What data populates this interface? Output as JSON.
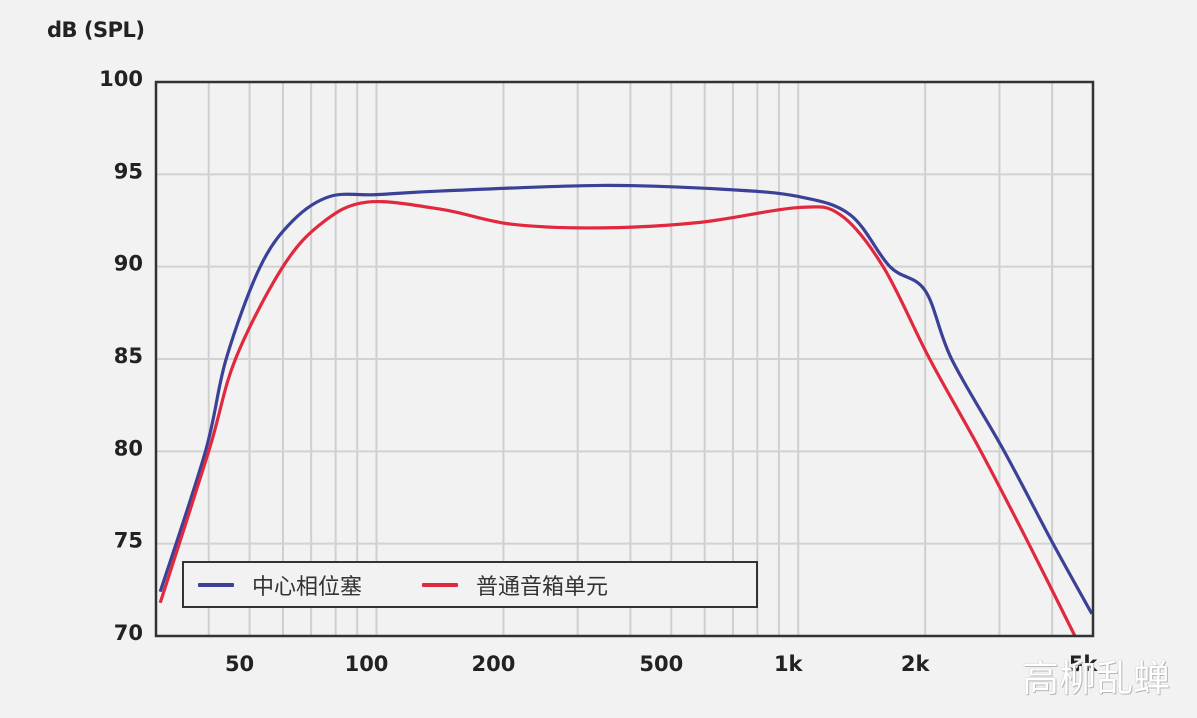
{
  "chart_data": {
    "type": "line",
    "title": "",
    "xlabel": "",
    "ylabel": "dB (SPL)",
    "xscale": "log",
    "xlim": [
      30,
      5000
    ],
    "ylim": [
      70,
      100
    ],
    "grid": true,
    "legend_position": "bottom-left inside",
    "x_tick_labels": [
      {
        "value": 50,
        "label": "50"
      },
      {
        "value": 100,
        "label": "100"
      },
      {
        "value": 200,
        "label": "200"
      },
      {
        "value": 500,
        "label": "500"
      },
      {
        "value": 1000,
        "label": "1k"
      },
      {
        "value": 2000,
        "label": "2k"
      },
      {
        "value": 5000,
        "label": "5k"
      }
    ],
    "x_gridlines": [
      40,
      50,
      60,
      70,
      80,
      90,
      100,
      200,
      300,
      400,
      500,
      600,
      700,
      800,
      900,
      1000,
      2000,
      3000,
      4000
    ],
    "y_ticks": [
      70,
      75,
      80,
      85,
      90,
      95,
      100
    ],
    "series": [
      {
        "name": "中心相位塞",
        "color": "#3a4196",
        "points": [
          [
            30.7,
            72.4
          ],
          [
            39.3,
            80.0
          ],
          [
            44.0,
            85.0
          ],
          [
            53.0,
            90.0
          ],
          [
            63.4,
            92.5
          ],
          [
            77.5,
            93.8
          ],
          [
            100,
            93.9
          ],
          [
            143,
            94.1
          ],
          [
            341,
            94.4
          ],
          [
            655,
            94.2
          ],
          [
            1000,
            93.8
          ],
          [
            1330,
            92.8
          ],
          [
            1650,
            90.0
          ],
          [
            2000,
            88.7
          ],
          [
            2310,
            85.0
          ],
          [
            3080,
            80.0
          ],
          [
            4020,
            75.0
          ],
          [
            4970,
            71.2
          ]
        ]
      },
      {
        "name": "普通音箱单元",
        "color": "#e0283e",
        "points": [
          [
            30.7,
            71.8
          ],
          [
            40.0,
            80.0
          ],
          [
            46.3,
            85.0
          ],
          [
            60.0,
            90.0
          ],
          [
            74.6,
            92.4
          ],
          [
            95.2,
            93.5
          ],
          [
            143,
            93.1
          ],
          [
            209,
            92.3
          ],
          [
            341,
            92.1
          ],
          [
            585,
            92.4
          ],
          [
            1000,
            93.2
          ],
          [
            1260,
            92.8
          ],
          [
            1590,
            90.0
          ],
          [
            2050,
            85.0
          ],
          [
            2710,
            80.0
          ],
          [
            3520,
            75.0
          ],
          [
            4530,
            70.0
          ]
        ]
      }
    ]
  },
  "axis": {
    "y_title": "dB (SPL)"
  },
  "legend": {
    "items": [
      {
        "label": "中心相位塞",
        "color": "#3a4196"
      },
      {
        "label": "普通音箱单元",
        "color": "#e0283e"
      }
    ]
  },
  "watermark": "高柳乱蝉"
}
